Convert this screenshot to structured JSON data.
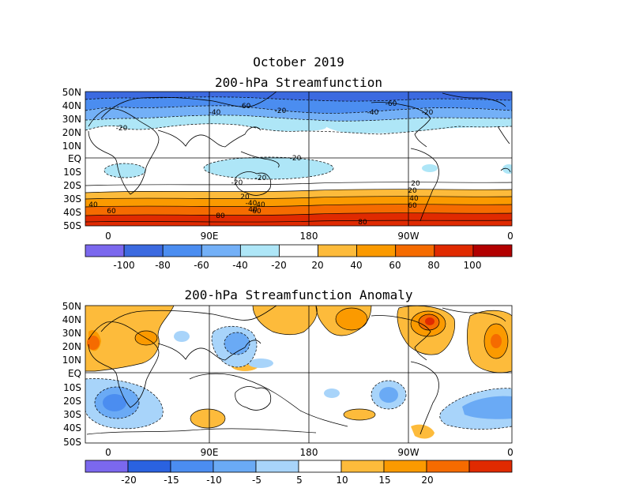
{
  "titles": {
    "main": "October 2019",
    "panel1": "200-hPa Streamfunction",
    "panel2": "200-hPa Streamfunction Anomaly"
  },
  "lat_labels": [
    "50N",
    "40N",
    "30N",
    "20N",
    "10N",
    "EQ",
    "10S",
    "20S",
    "30S",
    "40S",
    "50S"
  ],
  "lon_labels": [
    "0",
    "90E",
    "180",
    "90W",
    "0"
  ],
  "panel1": {
    "contour_labels": [
      "-60",
      "-40",
      "-20",
      "-20",
      "-60",
      "-40",
      "-20",
      "-20",
      "-20",
      "-20",
      "-40",
      "20",
      "20",
      "40",
      "40",
      "40",
      "60",
      "60",
      "80",
      "80",
      "20",
      "40",
      "60"
    ],
    "colorbar": {
      "labels": [
        "-100",
        "-80",
        "-60",
        "-40",
        "-20",
        "20",
        "40",
        "60",
        "80",
        "100"
      ],
      "colors": [
        "#7b68ee",
        "#3c6ae0",
        "#4b8df0",
        "#73b0f7",
        "#aee6f7",
        "#ffffff",
        "#fdbb3b",
        "#fb9a00",
        "#f56b00",
        "#e02a00",
        "#b20000"
      ]
    }
  },
  "panel2": {
    "colorbar": {
      "labels": [
        "-20",
        "-15",
        "-10",
        "-5",
        "5",
        "10",
        "15",
        "20"
      ],
      "colors": [
        "#7b68ee",
        "#2a62e0",
        "#4b8df0",
        "#6aaaf5",
        "#a8d4fa",
        "#ffffff",
        "#fdbb3b",
        "#fb9a00",
        "#f56b00",
        "#e02a00"
      ]
    }
  },
  "colors": {
    "coast": "#000000",
    "grid": "#000000"
  }
}
